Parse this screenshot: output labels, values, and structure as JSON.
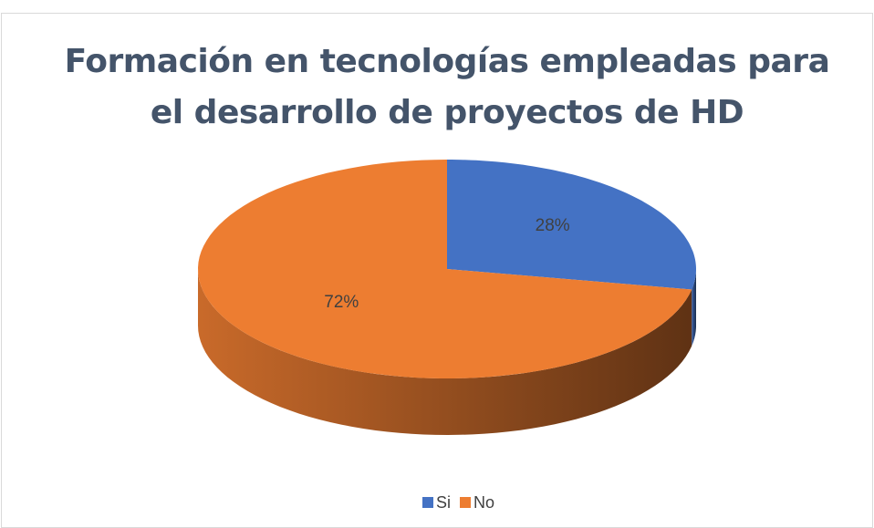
{
  "chart_data": {
    "type": "pie",
    "title": "Formación en tecnologías empleadas para el desarrollo de proyectos de HD",
    "categories": [
      "Si",
      "No"
    ],
    "values": [
      28,
      72
    ],
    "value_labels": [
      "28%",
      "72%"
    ],
    "colors": [
      "#4472c4",
      "#ed7d31"
    ],
    "legend": "bottom"
  }
}
